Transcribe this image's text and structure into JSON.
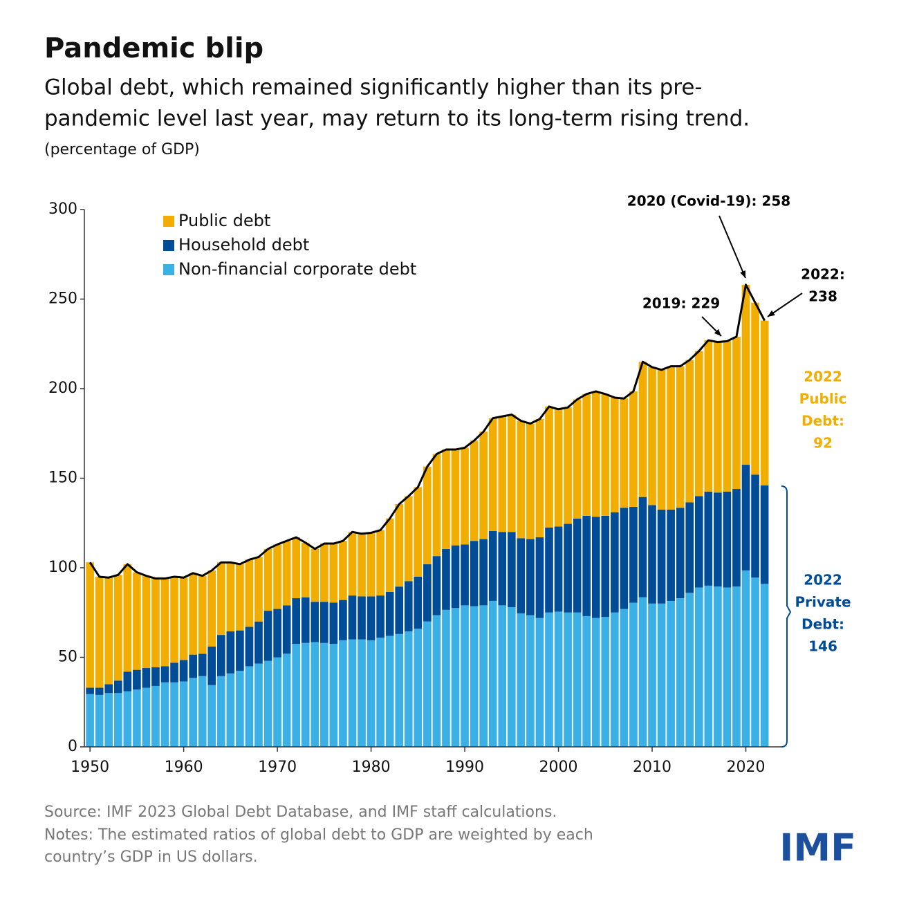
{
  "chart_data": {
    "type": "stacked-bar",
    "title": "Pandemic blip",
    "subtitle": [
      "Global debt, which remained significantly higher than its pre-",
      "pandemic level last year, may return to its long-term rising trend."
    ],
    "unit_note": "(percentage of GDP)",
    "x": [
      1950,
      1951,
      1952,
      1953,
      1954,
      1955,
      1956,
      1957,
      1958,
      1959,
      1960,
      1961,
      1962,
      1963,
      1964,
      1965,
      1966,
      1967,
      1968,
      1969,
      1970,
      1971,
      1972,
      1973,
      1974,
      1975,
      1976,
      1977,
      1978,
      1979,
      1980,
      1981,
      1982,
      1983,
      1984,
      1985,
      1986,
      1987,
      1988,
      1989,
      1990,
      1991,
      1992,
      1993,
      1994,
      1995,
      1996,
      1997,
      1998,
      1999,
      2000,
      2001,
      2002,
      2003,
      2004,
      2005,
      2006,
      2007,
      2008,
      2009,
      2010,
      2011,
      2012,
      2013,
      2014,
      2015,
      2016,
      2017,
      2018,
      2019,
      2020,
      2021,
      2022
    ],
    "series": [
      {
        "name": "Non-financial corporate debt",
        "color": "#3bb0e6",
        "values": [
          29.5,
          29,
          30,
          30,
          31,
          32,
          33,
          34,
          36,
          36,
          36.5,
          38.5,
          39.5,
          34.5,
          39.5,
          41,
          42.5,
          45,
          46.5,
          48,
          50,
          52,
          57.5,
          58,
          58.5,
          58,
          57.5,
          59.5,
          60,
          60,
          59.5,
          61,
          62,
          63,
          64.5,
          66,
          70,
          73.5,
          76.5,
          77.5,
          79,
          78.5,
          79,
          81.5,
          79,
          78,
          74.5,
          73.5,
          72,
          75,
          75.5,
          75,
          75,
          73,
          72,
          72.5,
          75,
          77,
          80.5,
          83.5,
          80,
          80,
          81.5,
          83,
          86,
          89,
          90,
          89.5,
          89,
          89.5,
          98.5,
          94.5,
          91
        ]
      },
      {
        "name": "Household debt",
        "color": "#004c97",
        "values": [
          3.5,
          4,
          5,
          7,
          11,
          11,
          11,
          10.5,
          9,
          11,
          12,
          13,
          12.5,
          21.5,
          23,
          23.5,
          22.5,
          22,
          23.5,
          28,
          27,
          27,
          25.5,
          25.5,
          22.5,
          23,
          23,
          22.5,
          24.5,
          24,
          24.5,
          23.5,
          24.5,
          26.5,
          28,
          29,
          32,
          33,
          34,
          35,
          34,
          36.5,
          37,
          39,
          41,
          42,
          42,
          42.5,
          45,
          47.5,
          47.5,
          49.5,
          52.5,
          56,
          56.5,
          56.5,
          56,
          56.5,
          53.5,
          56,
          55,
          52.5,
          51,
          50.5,
          50.5,
          51,
          52.5,
          52.5,
          53.5,
          54.5,
          59,
          57.5,
          55
        ]
      },
      {
        "name": "Public debt",
        "color": "#f2ae00",
        "values": [
          70,
          62,
          59.5,
          59,
          60,
          54.5,
          51.5,
          49.5,
          49,
          48,
          46,
          45.5,
          43.5,
          42.5,
          40.5,
          38.5,
          37,
          37.5,
          36,
          34.5,
          36,
          36,
          34,
          30.5,
          29.5,
          32.5,
          33,
          33,
          35.5,
          35,
          35.5,
          36.5,
          41,
          46,
          47.5,
          50,
          54.5,
          57,
          55.5,
          53.5,
          54,
          56,
          60,
          63,
          64.5,
          65.5,
          65.5,
          64.5,
          66,
          67.5,
          65.5,
          65,
          66.5,
          68,
          70,
          68,
          64,
          61,
          64.5,
          75.5,
          77,
          78,
          80,
          79,
          79.5,
          81,
          84.5,
          84,
          84,
          85,
          100.5,
          96,
          92
        ]
      }
    ],
    "legend_order": [
      2,
      1,
      0
    ],
    "xlim": [
      1949.4,
      2023.8
    ],
    "xticks": [
      1950,
      1960,
      1970,
      1980,
      1990,
      2000,
      2010,
      2020
    ],
    "ylim": [
      0,
      300
    ],
    "yticks": [
      0,
      50,
      100,
      150,
      200,
      250,
      300
    ],
    "outline_color": "#000000",
    "annotations": [
      {
        "lines": [
          "2020 (Covid-19): 258"
        ],
        "color": "#000000"
      },
      {
        "lines": [
          "2019: 229"
        ],
        "color": "#000000"
      },
      {
        "lines": [
          "2022:",
          "238"
        ],
        "color": "#000000"
      },
      {
        "lines": [
          "2022",
          "Public",
          "Debt:",
          "92"
        ],
        "color": "#f2ae00"
      },
      {
        "lines": [
          "2022",
          "Private",
          "Debt:",
          "146"
        ],
        "color": "#004c97"
      }
    ],
    "source": "Source: IMF 2023 Global Debt Database, and IMF staff calculations.",
    "notes": [
      "Notes: The estimated ratios of global debt to GDP are weighted by each",
      "country’s GDP in US dollars."
    ],
    "logo": "IMF"
  }
}
